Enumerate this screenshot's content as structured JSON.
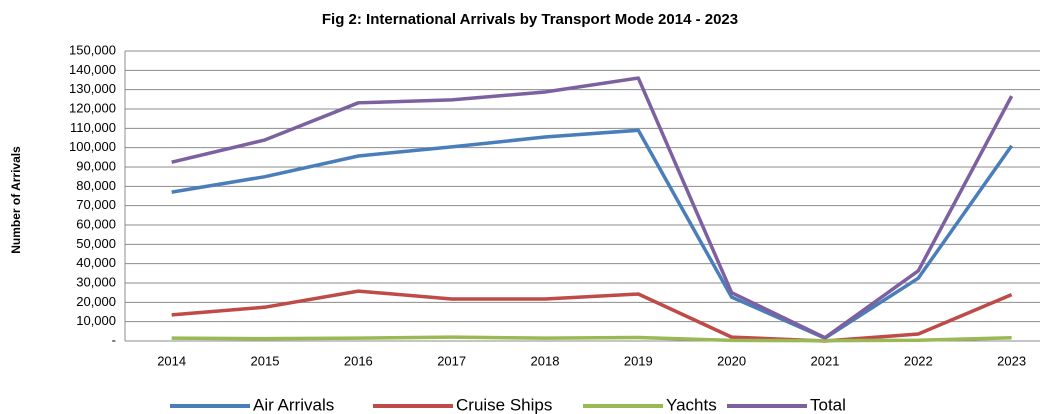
{
  "chart_data": {
    "type": "line",
    "title": "Fig 2:  International Arrivals by Transport Mode 2014 - 2023",
    "y_label": "Number of Arrivals",
    "categories": [
      "2014",
      "2015",
      "2016",
      "2017",
      "2018",
      "2019",
      "2020",
      "2021",
      "2022",
      "2023"
    ],
    "series": [
      {
        "name": "Air Arrivals",
        "color": "#4a7ebb",
        "values": [
          77000,
          85000,
          95700,
          100400,
          105500,
          109000,
          22700,
          1500,
          32500,
          101000
        ]
      },
      {
        "name": "Cruise Ships",
        "color": "#be4b48",
        "values": [
          13500,
          17500,
          25800,
          21700,
          21700,
          24300,
          2000,
          0,
          3600,
          24000
        ]
      },
      {
        "name": "Yachts",
        "color": "#98b954",
        "values": [
          1500,
          1200,
          1500,
          2000,
          1500,
          1800,
          300,
          200,
          400,
          1700
        ]
      },
      {
        "name": "Total",
        "color": "#7d60a0",
        "values": [
          92500,
          104000,
          123200,
          124700,
          128800,
          136000,
          25000,
          1700,
          36300,
          126700
        ]
      }
    ],
    "ylim": [
      0,
      150000
    ],
    "yticks": [
      {
        "value": 0,
        "label": "-"
      },
      {
        "value": 10000,
        "label": "10,000"
      },
      {
        "value": 20000,
        "label": "20,000"
      },
      {
        "value": 30000,
        "label": "30,000"
      },
      {
        "value": 40000,
        "label": "40,000"
      },
      {
        "value": 50000,
        "label": "50,000"
      },
      {
        "value": 60000,
        "label": "60,000"
      },
      {
        "value": 70000,
        "label": "70,000"
      },
      {
        "value": 80000,
        "label": "80,000"
      },
      {
        "value": 90000,
        "label": "90,000"
      },
      {
        "value": 100000,
        "label": "100,000"
      },
      {
        "value": 110000,
        "label": "110,000"
      },
      {
        "value": 120000,
        "label": "120,000"
      },
      {
        "value": 130000,
        "label": "130,000"
      },
      {
        "value": 140000,
        "label": "140,000"
      },
      {
        "value": 150000,
        "label": "150,000"
      }
    ],
    "grid": true,
    "legend": "bottom"
  }
}
